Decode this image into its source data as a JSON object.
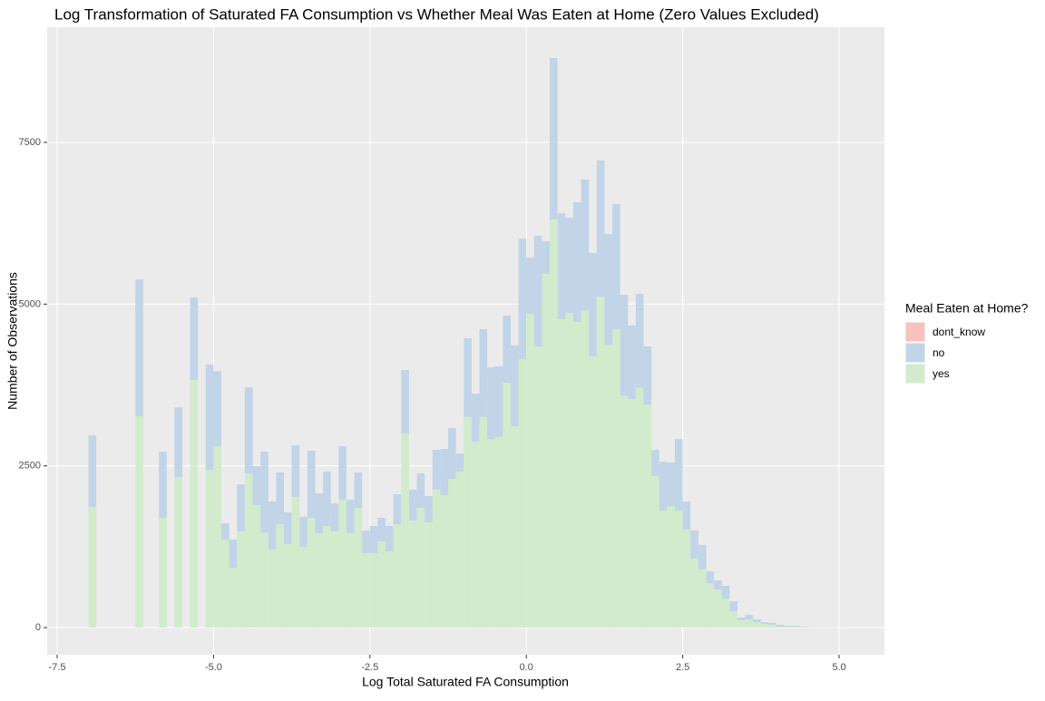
{
  "chart_data": {
    "type": "histogram",
    "title": "Log Transformation of Saturated FA Consumption vs Whether Meal Was Eaten at Home (Zero Values Excluded)",
    "x_label": "Log Total Saturated FA Consumption",
    "y_label": "Number of Observations",
    "legend_title": "Meal Eaten at Home?",
    "legend_position": "right",
    "stacked": true,
    "grid": true,
    "bins": [
      -7,
      -6.875,
      -6.75,
      -6.625,
      -6.5,
      -6.375,
      -6.25,
      -6.125,
      -6,
      -5.875,
      -5.75,
      -5.625,
      -5.5,
      -5.375,
      -5.25,
      -5.125,
      -5,
      -4.875,
      -4.75,
      -4.625,
      -4.5,
      -4.375,
      -4.25,
      -4.125,
      -4,
      -3.875,
      -3.75,
      -3.625,
      -3.5,
      -3.375,
      -3.25,
      -3.125,
      -3,
      -2.875,
      -2.75,
      -2.625,
      -2.5,
      -2.375,
      -2.25,
      -2.125,
      -2,
      -1.875,
      -1.75,
      -1.625,
      -1.5,
      -1.375,
      -1.25,
      -1.125,
      -1,
      -0.875,
      -0.75,
      -0.625,
      -0.5,
      -0.375,
      -0.25,
      -0.125,
      0,
      0.125,
      0.25,
      0.375,
      0.5,
      0.625,
      0.75,
      0.875,
      1,
      1.125,
      1.25,
      1.375,
      1.5,
      1.625,
      1.75,
      1.875,
      2,
      2.125,
      2.25,
      2.375,
      2.5,
      2.625,
      2.75,
      2.875,
      3,
      3.125,
      3.25,
      3.375,
      3.5,
      3.625,
      3.75,
      3.875,
      4,
      4.125,
      4.25,
      4.375,
      4.5,
      4.625,
      4.75,
      4.875,
      5,
      5.125
    ],
    "series": [
      {
        "name": "dont_know",
        "color": "#f7c2bc",
        "values": [
          0,
          0,
          0,
          0,
          0,
          0,
          0,
          0,
          0,
          0,
          0,
          0,
          0,
          0,
          0,
          0,
          0,
          0,
          0,
          0,
          0,
          0,
          0,
          0,
          0,
          0,
          0,
          0,
          0,
          0,
          0,
          0,
          0,
          0,
          0,
          0,
          0,
          0,
          0,
          0,
          0,
          0,
          0,
          0,
          0,
          0,
          0,
          0,
          0,
          0,
          0,
          0,
          0,
          0,
          0,
          0,
          0,
          0,
          0,
          0,
          0,
          0,
          0,
          0,
          0,
          0,
          0,
          0,
          0,
          0,
          0,
          0,
          0,
          0,
          0,
          0,
          0,
          0,
          0,
          0,
          0,
          0,
          0,
          0,
          0,
          0,
          0,
          0,
          0,
          0,
          0,
          0,
          0,
          0,
          0,
          0,
          0
        ]
      },
      {
        "name": "no",
        "color": "#c1d4e8",
        "values": [
          1105,
          0,
          0,
          0,
          0,
          0,
          2118,
          0,
          0,
          1024,
          0,
          1080,
          0,
          1276,
          0,
          1627,
          1163,
          252,
          435,
          729,
          1332,
          602,
          1248,
          743,
          799,
          491,
          799,
          463,
          1038,
          617,
          841,
          435,
          827,
          519,
          546,
          350,
          420,
          365,
          392,
          463,
          981,
          477,
          532,
          407,
          617,
          715,
          785,
          281,
          1219,
          743,
          1359,
          1108,
          1094,
          1038,
          1248,
          1864,
          870,
          1710,
          504,
          2495,
          1640,
          1472,
          1850,
          2019,
          1598,
          2103,
          1711,
          1935,
          1556,
          1136,
          1444,
          897,
          407,
          757,
          673,
          1107,
          435,
          434,
          379,
          182,
          140,
          196,
          155,
          42,
          70,
          42,
          28,
          28,
          22,
          14,
          14,
          7,
          3,
          2,
          2,
          1,
          1
        ]
      },
      {
        "name": "yes",
        "color": "#d2ebcc",
        "values": [
          1865,
          0,
          0,
          0,
          0,
          0,
          3267,
          0,
          0,
          1696,
          0,
          2327,
          0,
          3827,
          0,
          2439,
          2804,
          1360,
          925,
          1486,
          2383,
          1893,
          1472,
          1206,
          1598,
          1290,
          2019,
          1248,
          1696,
          1458,
          1570,
          1486,
          1977,
          1458,
          1851,
          1150,
          1150,
          1332,
          1178,
          1598,
          3000,
          1654,
          1851,
          1626,
          2131,
          2047,
          2299,
          2411,
          3253,
          2874,
          3253,
          2916,
          2944,
          3785,
          3112,
          4150,
          4850,
          4346,
          5468,
          6309,
          4767,
          4865,
          4725,
          4907,
          4192,
          5117,
          4374,
          4612,
          3589,
          3533,
          3715,
          3449,
          2341,
          1809,
          1879,
          1809,
          1514,
          1066,
          897,
          687,
          589,
          449,
          252,
          112,
          126,
          84,
          56,
          42,
          20,
          14,
          14,
          7,
          4,
          3,
          3,
          2,
          2
        ]
      }
    ],
    "xlim": [
      -7.66,
      5.725
    ],
    "xticks": [
      -7.5,
      {
        "value": -5,
        "label": "-5.0"
      },
      -2.5,
      {
        "value": 0,
        "label": "0.0"
      },
      2.5,
      {
        "value": 5,
        "label": "5.0"
      }
    ],
    "ylim": [
      -420,
      9281
    ],
    "yticks": [
      0,
      2500,
      5000,
      7500
    ]
  }
}
